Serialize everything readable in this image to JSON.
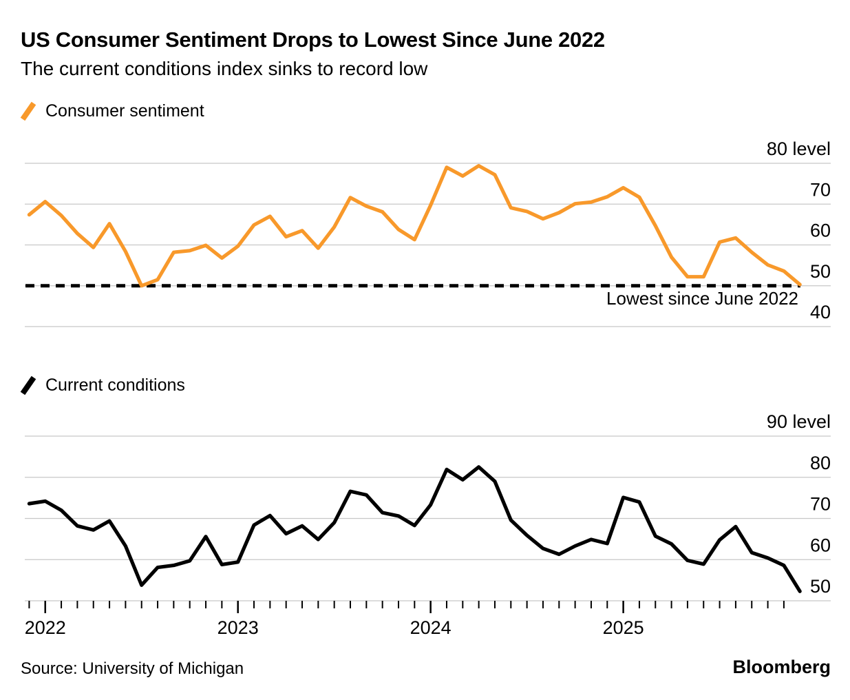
{
  "header": {
    "title": "US Consumer Sentiment Drops to Lowest Since June 2022",
    "subtitle": "The current conditions index sinks to record low"
  },
  "charts": [
    {
      "legend": "Consumer sentiment",
      "annotation": "Lowest since June 2022"
    },
    {
      "legend": "Current conditions"
    }
  ],
  "footer": {
    "source": "Source: University of Michigan",
    "brand": "Bloomberg"
  },
  "colors": {
    "sentiment_line": "#F8992B",
    "conditions_line": "#000000",
    "gridline": "#C7C7C7",
    "reference_line": "#000000",
    "text": "#000000"
  },
  "chart_data": [
    {
      "type": "line",
      "title": "Consumer sentiment",
      "color": "#F8992B",
      "grid": true,
      "legend_position": "top-left",
      "y_axis_side": "right",
      "y_ticks": [
        40,
        50,
        60,
        70,
        80
      ],
      "y_top_tick_label": "80 level",
      "ylim": [
        36,
        85
      ],
      "x_tick_labels": [
        "2022",
        "2023",
        "2024",
        "2025"
      ],
      "x_axis_visible": false,
      "reference_line": {
        "value": 50.0,
        "style": "dashed",
        "color": "#000000",
        "label": "Lowest since June 2022"
      },
      "x_months": [
        "2021-11",
        "2021-12",
        "2022-01",
        "2022-02",
        "2022-03",
        "2022-04",
        "2022-05",
        "2022-06",
        "2022-07",
        "2022-08",
        "2022-09",
        "2022-10",
        "2022-11",
        "2022-12",
        "2023-01",
        "2023-02",
        "2023-03",
        "2023-04",
        "2023-05",
        "2023-06",
        "2023-07",
        "2023-08",
        "2023-09",
        "2023-10",
        "2023-11",
        "2023-12",
        "2024-01",
        "2024-02",
        "2024-03",
        "2024-04",
        "2024-05",
        "2024-06",
        "2024-07",
        "2024-08",
        "2024-09",
        "2024-10",
        "2024-11",
        "2024-12",
        "2025-01",
        "2025-02",
        "2025-03",
        "2025-04",
        "2025-05",
        "2025-06",
        "2025-07",
        "2025-08",
        "2025-09",
        "2025-10",
        "2025-11"
      ],
      "series": [
        {
          "name": "Consumer sentiment",
          "values": [
            67.4,
            70.6,
            67.2,
            62.8,
            59.4,
            65.2,
            58.4,
            50.0,
            51.5,
            58.2,
            58.6,
            59.9,
            56.8,
            59.7,
            64.9,
            67.0,
            62.0,
            63.5,
            59.2,
            64.4,
            71.6,
            69.5,
            68.1,
            63.8,
            61.3,
            69.7,
            79.0,
            76.9,
            79.4,
            77.2,
            69.1,
            68.2,
            66.4,
            67.9,
            70.1,
            70.5,
            71.8,
            74.0,
            71.7,
            64.7,
            57.0,
            52.2,
            52.2,
            60.7,
            61.7,
            58.2,
            55.1,
            53.6,
            50.3
          ]
        }
      ]
    },
    {
      "type": "line",
      "title": "Current conditions",
      "color": "#000000",
      "grid": true,
      "legend_position": "top-left",
      "y_axis_side": "right",
      "y_ticks": [
        50,
        60,
        70,
        80,
        90
      ],
      "y_top_tick_label": "90 level",
      "ylim": [
        46,
        94
      ],
      "x_tick_labels": [
        "2022",
        "2023",
        "2024",
        "2025"
      ],
      "x_axis_visible": true,
      "x_months": [
        "2021-11",
        "2021-12",
        "2022-01",
        "2022-02",
        "2022-03",
        "2022-04",
        "2022-05",
        "2022-06",
        "2022-07",
        "2022-08",
        "2022-09",
        "2022-10",
        "2022-11",
        "2022-12",
        "2023-01",
        "2023-02",
        "2023-03",
        "2023-04",
        "2023-05",
        "2023-06",
        "2023-07",
        "2023-08",
        "2023-09",
        "2023-10",
        "2023-11",
        "2023-12",
        "2024-01",
        "2024-02",
        "2024-03",
        "2024-04",
        "2024-05",
        "2024-06",
        "2024-07",
        "2024-08",
        "2024-09",
        "2024-10",
        "2024-11",
        "2024-12",
        "2025-01",
        "2025-02",
        "2025-03",
        "2025-04",
        "2025-05",
        "2025-06",
        "2025-07",
        "2025-08",
        "2025-09",
        "2025-10",
        "2025-11"
      ],
      "series": [
        {
          "name": "Current conditions",
          "values": [
            73.6,
            74.2,
            72.0,
            68.2,
            67.2,
            69.4,
            63.3,
            53.8,
            58.1,
            58.6,
            59.7,
            65.6,
            58.8,
            59.4,
            68.4,
            70.7,
            66.3,
            68.2,
            64.9,
            69.0,
            76.6,
            75.7,
            71.4,
            70.6,
            68.3,
            73.3,
            81.9,
            79.4,
            82.5,
            79.0,
            69.6,
            65.9,
            62.7,
            61.3,
            63.3,
            64.9,
            63.9,
            75.1,
            74.0,
            65.7,
            63.8,
            59.8,
            58.9,
            64.8,
            68.0,
            61.7,
            60.4,
            58.6,
            52.3
          ]
        }
      ]
    }
  ]
}
